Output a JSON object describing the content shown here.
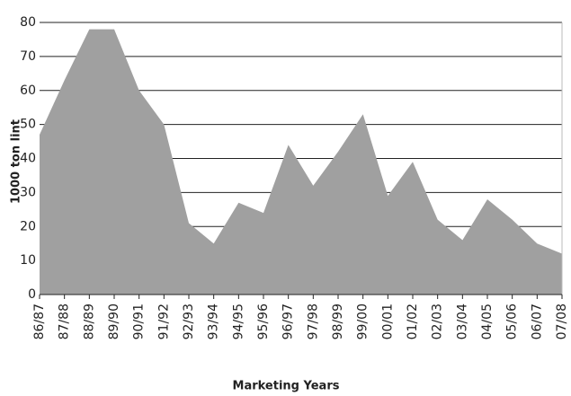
{
  "chart_data": {
    "type": "area",
    "y_label": "1000 ton lint",
    "x_label": "Marketing Years",
    "categories": [
      "86/87",
      "87/88",
      "88/89",
      "89/90",
      "90/91",
      "91/92",
      "92/93",
      "93/94",
      "94/95",
      "95/96",
      "96/97",
      "97/98",
      "98/99",
      "99/00",
      "00/01",
      "01/02",
      "02/03",
      "03/04",
      "04/05",
      "05/06",
      "06/07",
      "07/08"
    ],
    "values": [
      47,
      63,
      78,
      78,
      60,
      50,
      21,
      15,
      27,
      24,
      44,
      32,
      42,
      53,
      29,
      39,
      22,
      16,
      28,
      22,
      15,
      12
    ],
    "color": "#a0a0a0",
    "ylim": [
      0,
      80
    ],
    "yticks": [
      0,
      10,
      20,
      30,
      40,
      50,
      60,
      70,
      80
    ],
    "grid": true
  }
}
